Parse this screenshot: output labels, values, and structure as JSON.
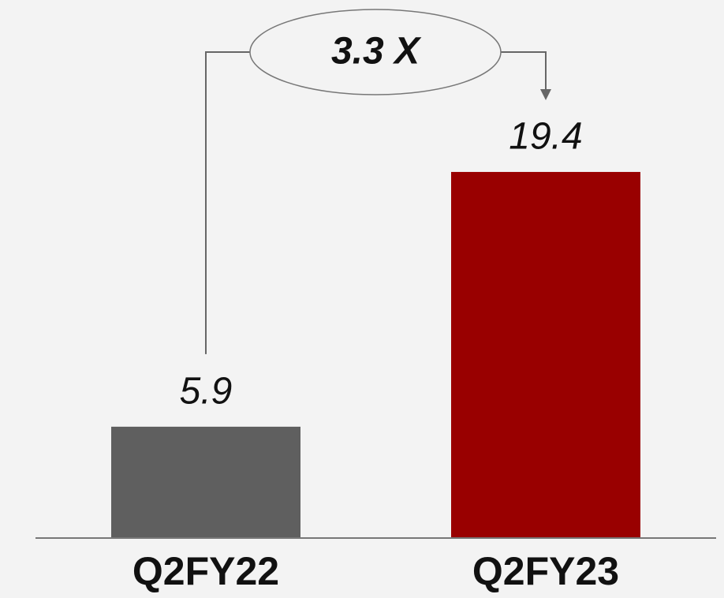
{
  "chart_data": {
    "type": "bar",
    "categories": [
      "Q2FY22",
      "Q2FY23"
    ],
    "values": [
      5.9,
      19.4
    ],
    "colors": [
      "#5f5f5f",
      "#990000"
    ],
    "annotation": "3.3 X",
    "ylim": [
      0,
      25
    ]
  }
}
